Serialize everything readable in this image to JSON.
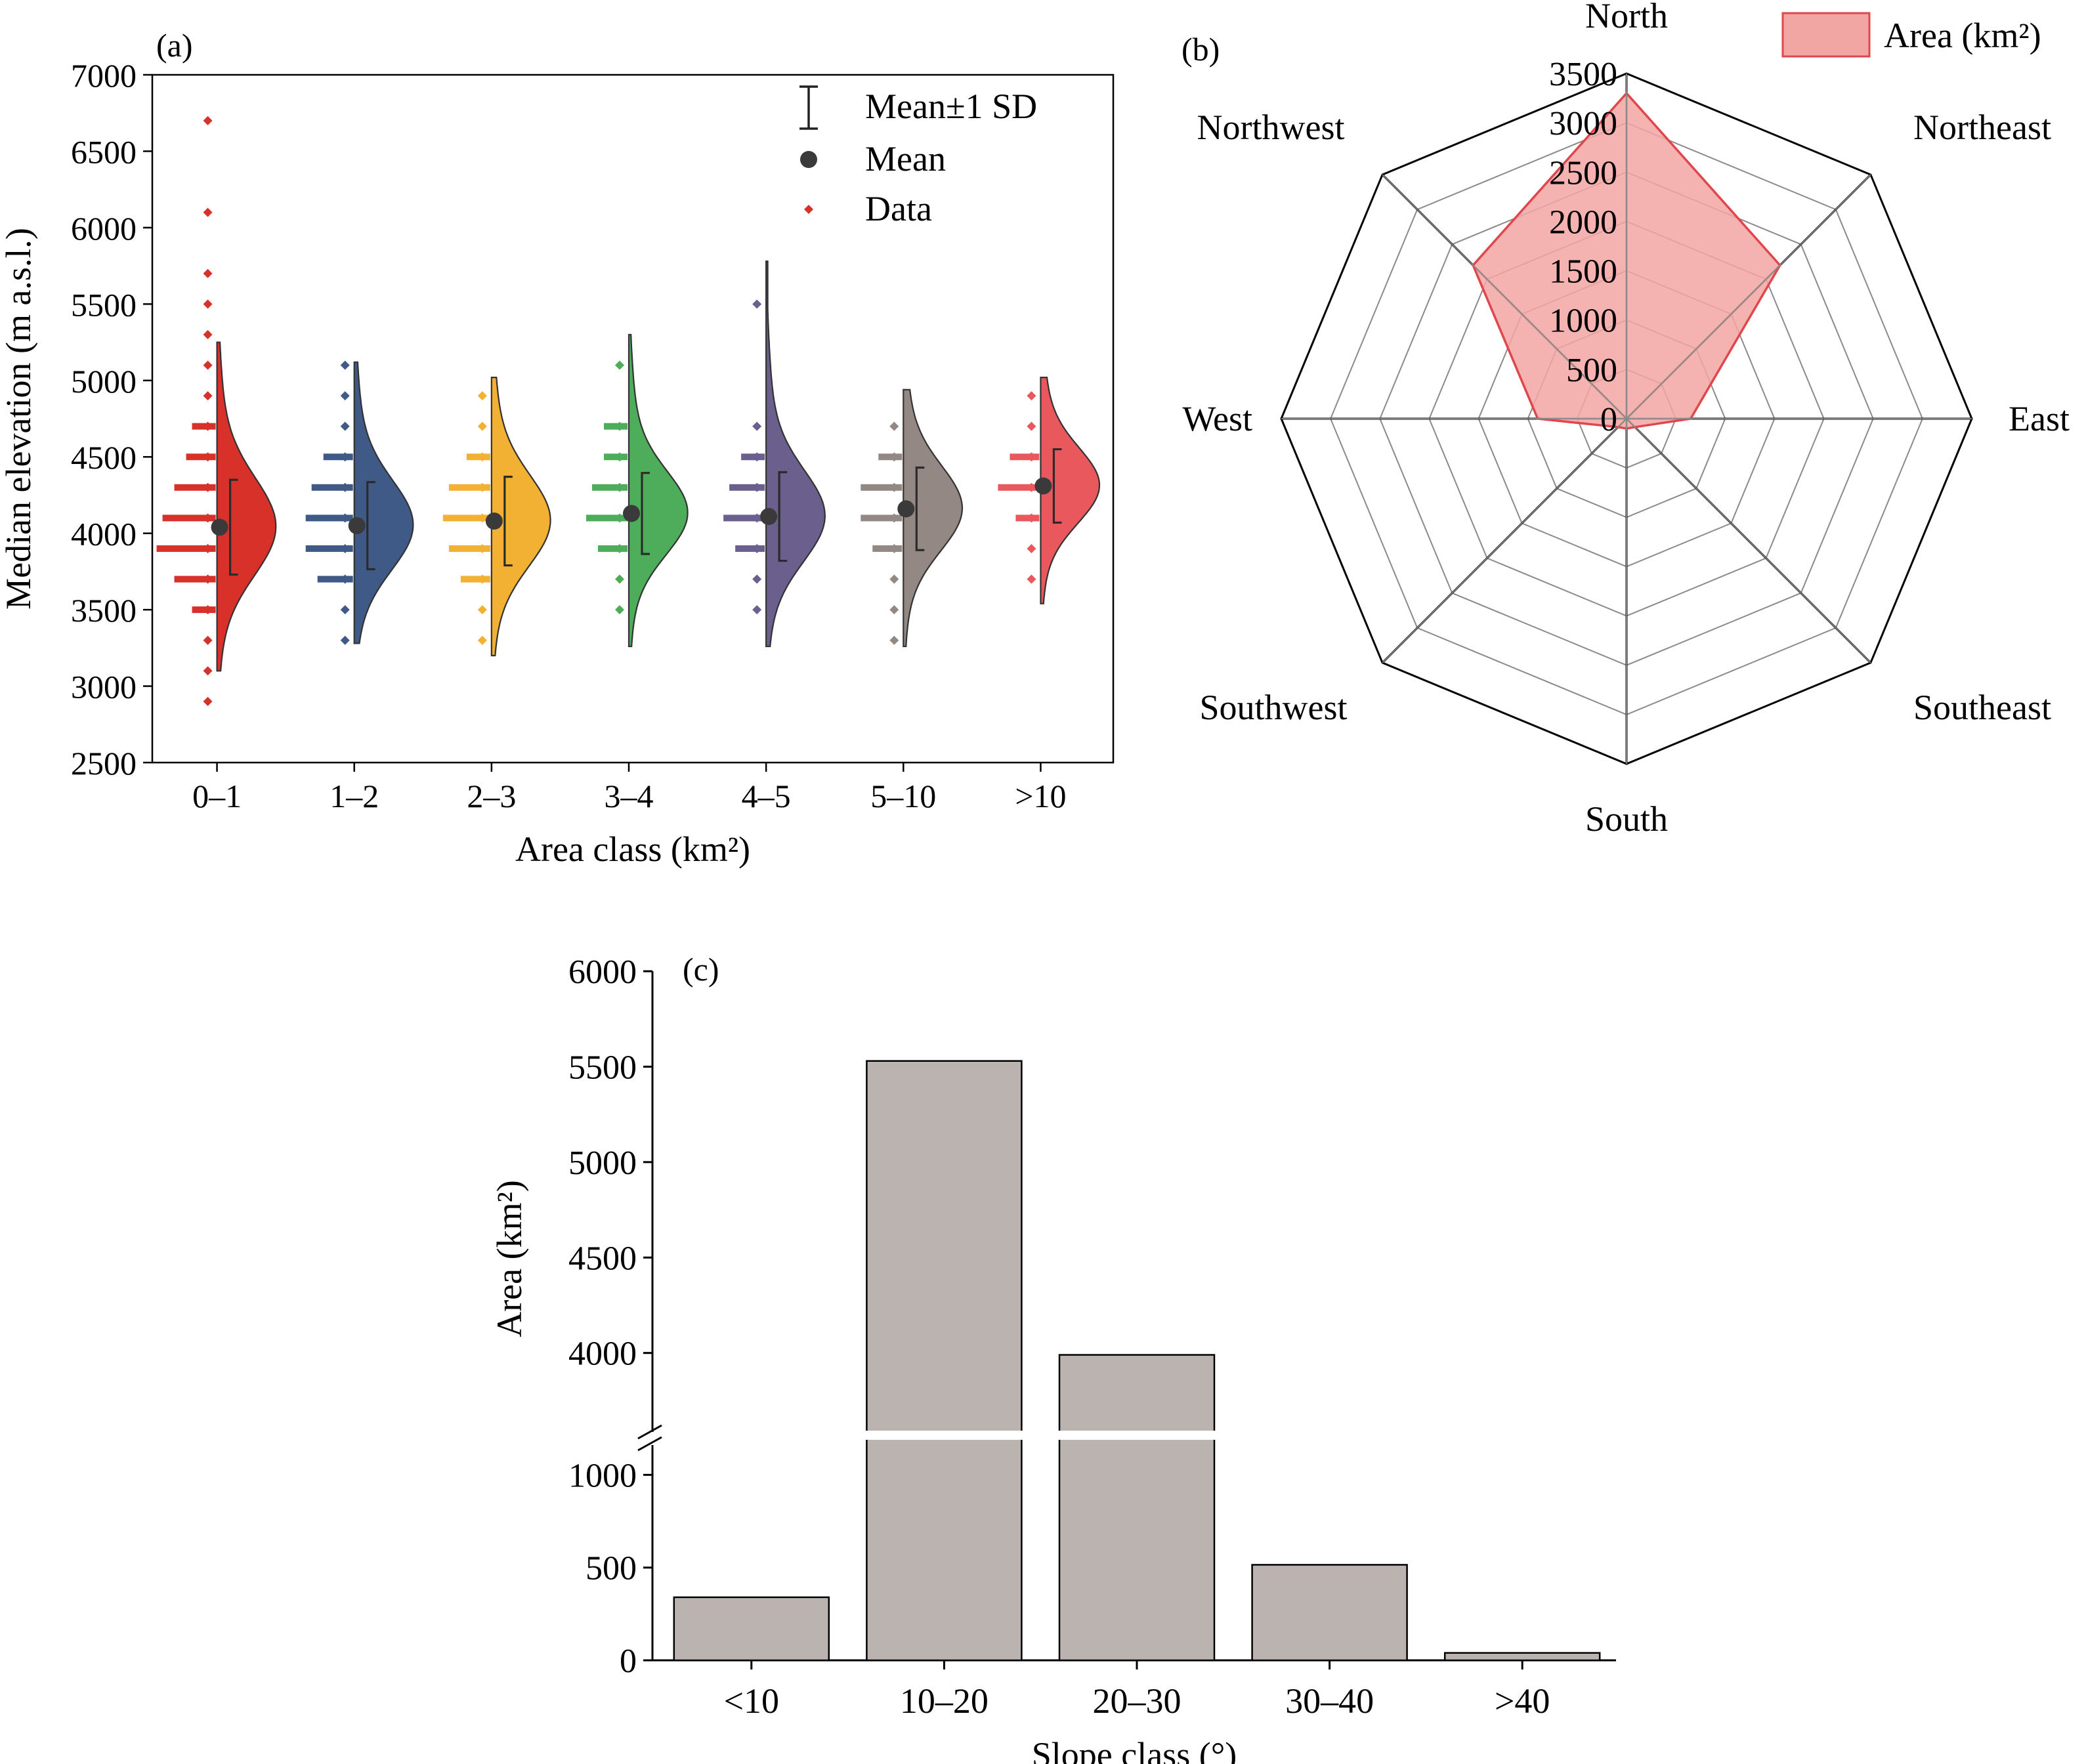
{
  "chart_data": [
    {
      "panel_label": "(a)",
      "type": "violin",
      "xlabel": "Area class (km²)",
      "ylabel": "Median elevation (m a.s.l.)",
      "ylim": [
        2500,
        7000
      ],
      "yticks": [
        2500,
        3000,
        3500,
        4000,
        4500,
        5000,
        5500,
        6000,
        6500,
        7000
      ],
      "categories": [
        "0–1",
        "1–2",
        "2–3",
        "3–4",
        "4–5",
        "5–10",
        ">10"
      ],
      "legend": {
        "items": [
          "Mean±1 SD",
          "Mean",
          "Data"
        ],
        "position": "top-right"
      },
      "groups": [
        {
          "color": "#d7312a",
          "mean": 4040,
          "sd": 310,
          "range": [
            3100,
            5250
          ],
          "data": [
            [
              2900,
              1
            ],
            [
              3100,
              1
            ],
            [
              3300,
              1
            ],
            [
              3500,
              2
            ],
            [
              3700,
              5
            ],
            [
              3900,
              8
            ],
            [
              4100,
              7
            ],
            [
              4300,
              5
            ],
            [
              4500,
              3
            ],
            [
              4700,
              2
            ],
            [
              4900,
              1
            ],
            [
              5100,
              1
            ],
            [
              5300,
              1
            ],
            [
              5500,
              1
            ],
            [
              5700,
              1
            ],
            [
              6100,
              1
            ],
            [
              6700,
              1
            ]
          ]
        },
        {
          "color": "#3f5a87",
          "mean": 4050,
          "sd": 285,
          "range": [
            3280,
            5120
          ],
          "data": [
            [
              3300,
              1
            ],
            [
              3500,
              1
            ],
            [
              3700,
              4
            ],
            [
              3900,
              6
            ],
            [
              4100,
              6
            ],
            [
              4300,
              5
            ],
            [
              4500,
              3
            ],
            [
              4700,
              1
            ],
            [
              4900,
              1
            ],
            [
              5100,
              1
            ]
          ]
        },
        {
          "color": "#f2b132",
          "mean": 4080,
          "sd": 290,
          "range": [
            3200,
            5020
          ],
          "data": [
            [
              3300,
              1
            ],
            [
              3500,
              1
            ],
            [
              3700,
              3
            ],
            [
              3900,
              5
            ],
            [
              4100,
              6
            ],
            [
              4300,
              5
            ],
            [
              4500,
              2
            ],
            [
              4700,
              1
            ],
            [
              4900,
              1
            ]
          ]
        },
        {
          "color": "#4ead5b",
          "mean": 4130,
          "sd": 265,
          "range": [
            3260,
            5300
          ],
          "data": [
            [
              3500,
              1
            ],
            [
              3700,
              1
            ],
            [
              3900,
              3
            ],
            [
              4100,
              5
            ],
            [
              4300,
              4
            ],
            [
              4500,
              2
            ],
            [
              4700,
              2
            ],
            [
              5100,
              1
            ]
          ]
        },
        {
          "color": "#6b5f8e",
          "mean": 4110,
          "sd": 290,
          "range": [
            3260,
            5780
          ],
          "data": [
            [
              3500,
              1
            ],
            [
              3700,
              1
            ],
            [
              3900,
              3
            ],
            [
              4100,
              5
            ],
            [
              4300,
              4
            ],
            [
              4500,
              2
            ],
            [
              4700,
              1
            ],
            [
              5500,
              1
            ]
          ]
        },
        {
          "color": "#948885",
          "mean": 4160,
          "sd": 270,
          "range": [
            3260,
            4940
          ],
          "data": [
            [
              3300,
              1
            ],
            [
              3500,
              1
            ],
            [
              3700,
              1
            ],
            [
              3900,
              3
            ],
            [
              4100,
              5
            ],
            [
              4300,
              5
            ],
            [
              4500,
              2
            ],
            [
              4700,
              1
            ]
          ]
        },
        {
          "color": "#e9585d",
          "mean": 4310,
          "sd": 240,
          "range": [
            3540,
            5020
          ],
          "data": [
            [
              3700,
              1
            ],
            [
              3900,
              1
            ],
            [
              4100,
              2
            ],
            [
              4300,
              5
            ],
            [
              4500,
              3
            ],
            [
              4700,
              1
            ],
            [
              4900,
              1
            ]
          ]
        }
      ]
    },
    {
      "panel_label": "(b)",
      "type": "radar",
      "directions": [
        "North",
        "Northeast",
        "East",
        "Southeast",
        "South",
        "Southwest",
        "West",
        "Northwest"
      ],
      "values": [
        3300,
        2200,
        650,
        120,
        100,
        120,
        900,
        2200
      ],
      "rmax": 3500,
      "ticks": [
        0,
        500,
        1000,
        1500,
        2000,
        2500,
        3000,
        3500
      ],
      "legend_label": "Area (km²)",
      "color": "#e0474c",
      "fill": "#f2a6a3"
    },
    {
      "panel_label": "(c)",
      "type": "bar",
      "xlabel": "Slope class (°)",
      "ylabel": "Area (km²)",
      "categories": [
        "<10",
        "10–20",
        "20–30",
        "30–40",
        ">40"
      ],
      "values": [
        340,
        5530,
        3990,
        515,
        40
      ],
      "broken_axis": {
        "lower": [
          0,
          1150
        ],
        "upper": [
          3600,
          6000
        ]
      },
      "yticks_lower": [
        0,
        500,
        1000
      ],
      "yticks_upper": [
        4000,
        4500,
        5000,
        5500,
        6000
      ],
      "bar_color": "#bbb3b0"
    }
  ]
}
